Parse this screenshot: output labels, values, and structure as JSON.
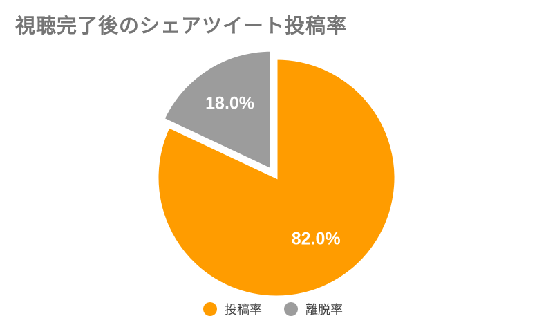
{
  "chart_data": {
    "type": "pie",
    "title": "視聴完了後のシェアツイート投稿率",
    "categories": [
      "投稿率",
      "離脱率"
    ],
    "values": [
      82.0,
      18.0
    ],
    "labels": [
      "82.0%",
      "18.0%"
    ],
    "colors": [
      "#FF9C00",
      "#9C9C9C"
    ],
    "start_angle_deg": 0,
    "direction": "clockwise",
    "exploded": "離脱率",
    "legend_position": "bottom"
  }
}
